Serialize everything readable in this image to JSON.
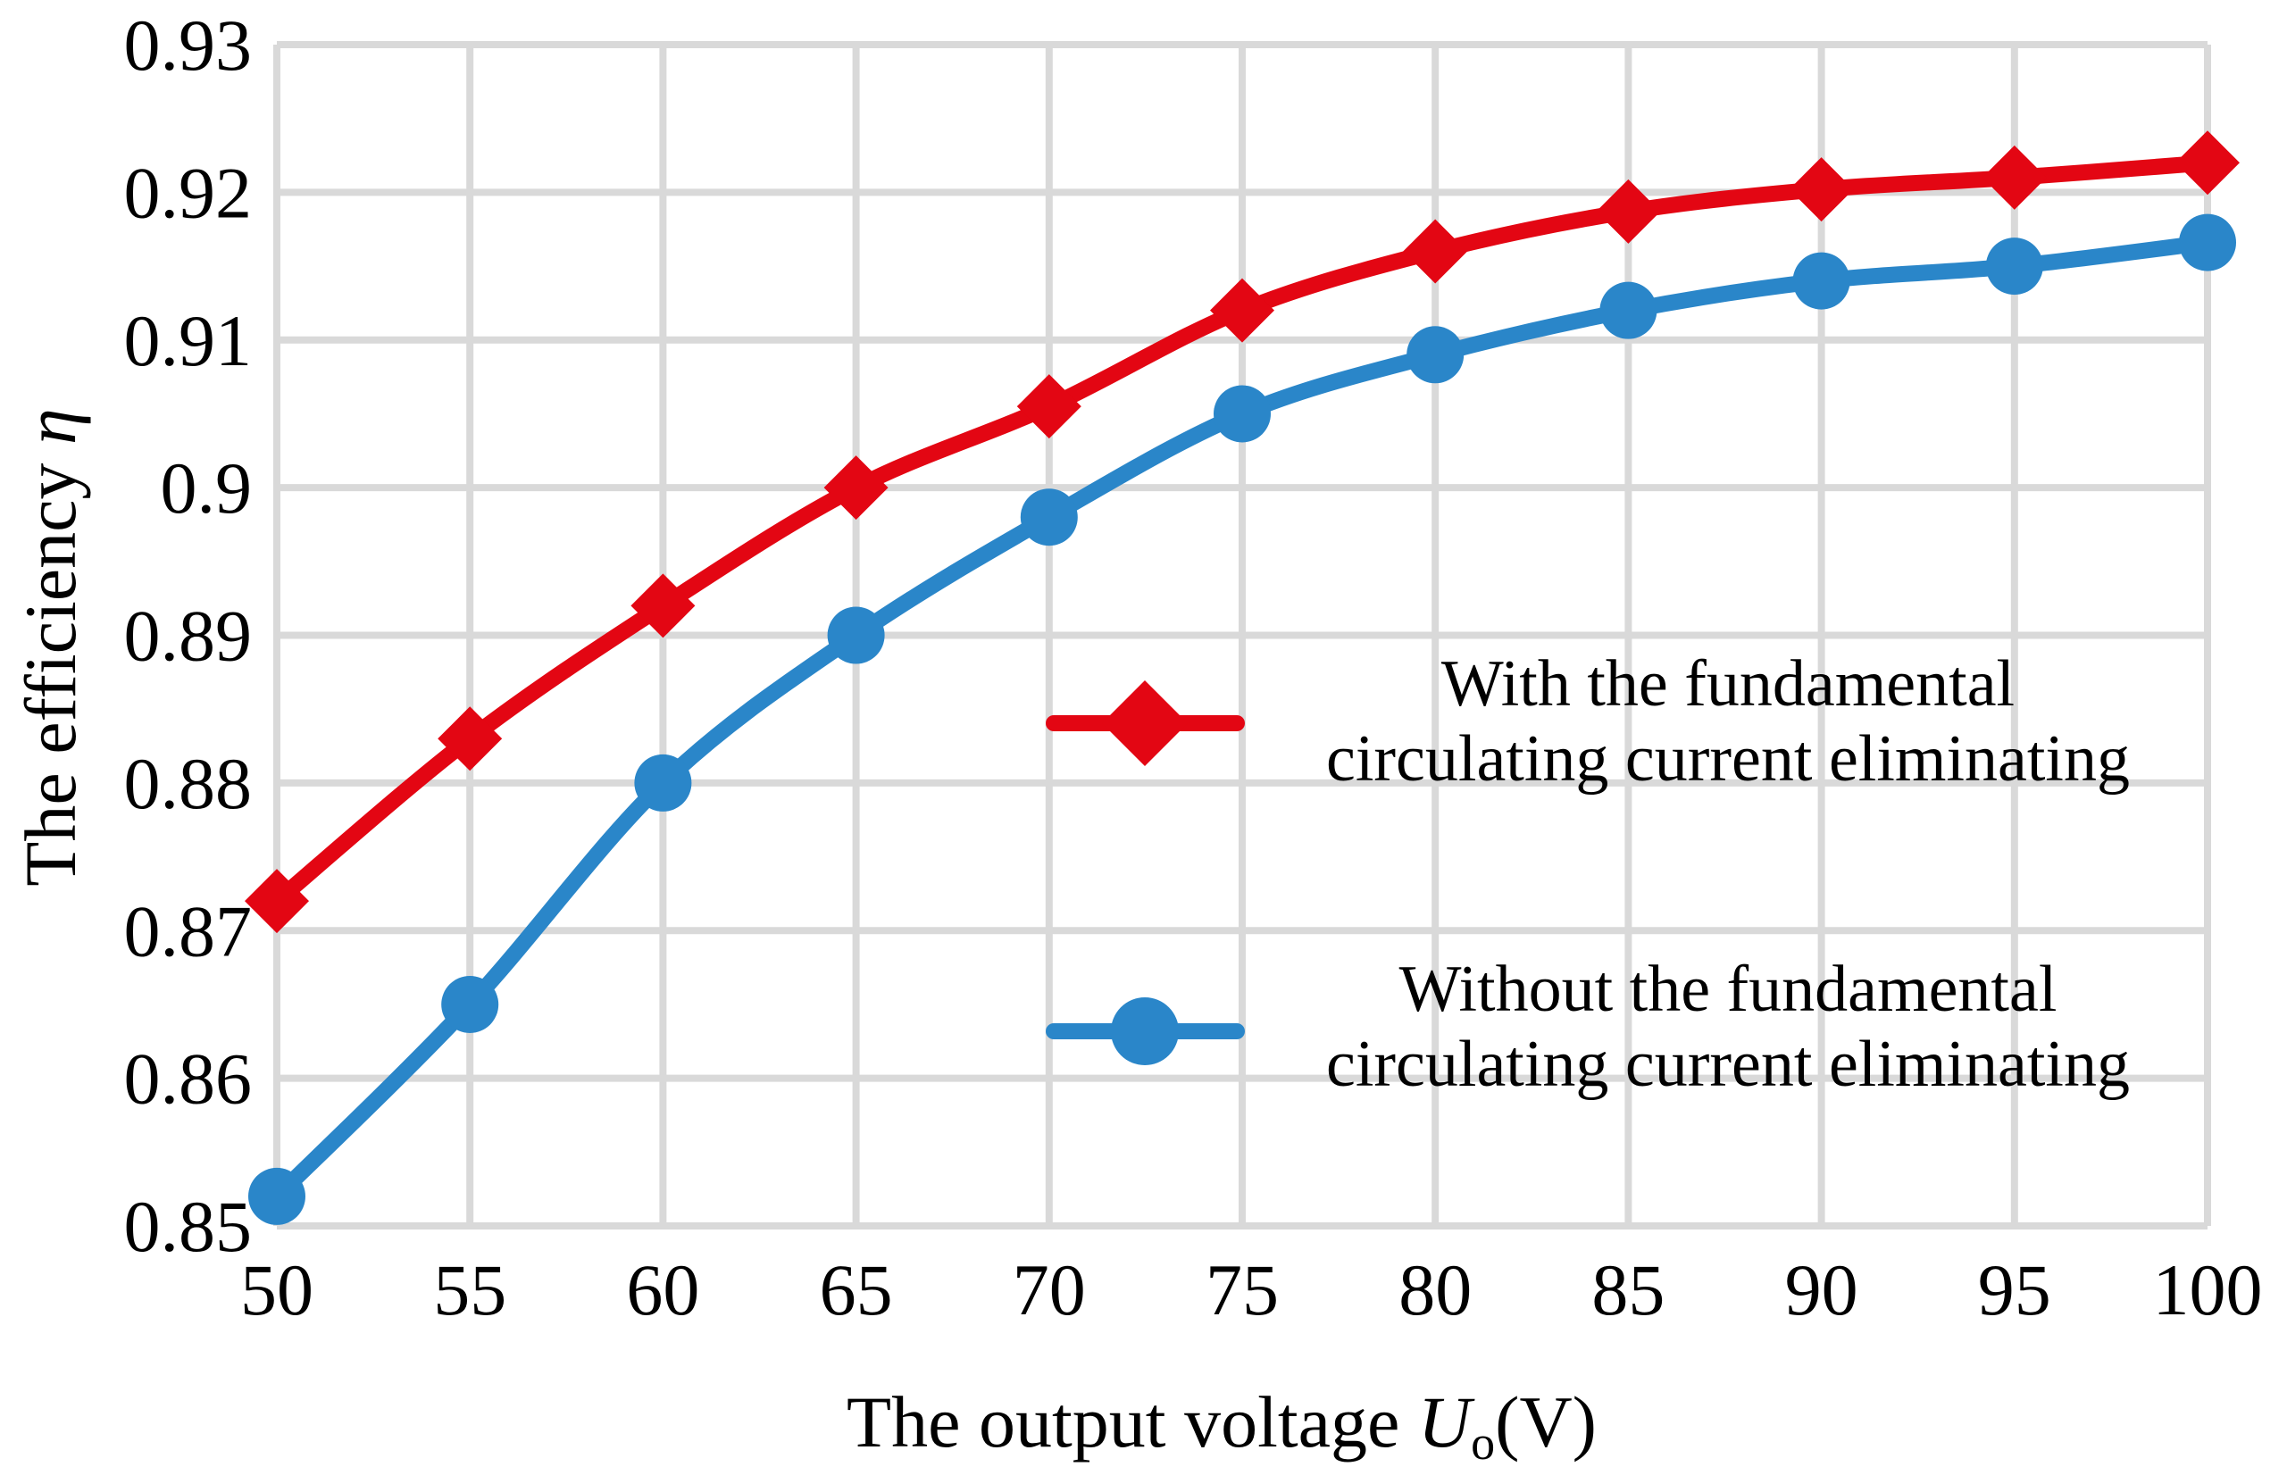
{
  "chart_data": {
    "type": "line",
    "xlabel": {
      "prefix": "The output voltage ",
      "var": "U",
      "sub": "o",
      "suffix": "(V)"
    },
    "ylabel": {
      "prefix": "The efficiency ",
      "var": "η"
    },
    "x": [
      50,
      55,
      60,
      65,
      70,
      75,
      80,
      85,
      90,
      95,
      100
    ],
    "xlim": [
      50,
      100
    ],
    "ylim": [
      0.85,
      0.93
    ],
    "x_ticks": [
      "50",
      "55",
      "60",
      "65",
      "70",
      "75",
      "80",
      "85",
      "90",
      "95",
      "100"
    ],
    "y_ticks": [
      "0.85",
      "0.86",
      "0.87",
      "0.88",
      "0.89",
      "0.9",
      "0.91",
      "0.92",
      "0.93"
    ],
    "y_tick_values": [
      0.85,
      0.86,
      0.87,
      0.88,
      0.89,
      0.9,
      0.91,
      0.92,
      0.93
    ],
    "grid": true,
    "legend_position": "right",
    "series": [
      {
        "name_lines": [
          "With the fundamental",
          "circulating current eliminating"
        ],
        "values": [
          0.872,
          0.883,
          0.892,
          0.9,
          0.9055,
          0.912,
          0.916,
          0.9187,
          0.9202,
          0.921,
          0.922
        ],
        "color": "#e30613",
        "marker": "diamond"
      },
      {
        "name_lines": [
          "Without the fundamental",
          "circulating current eliminating"
        ],
        "values": [
          0.852,
          0.865,
          0.88,
          0.89,
          0.898,
          0.905,
          0.909,
          0.912,
          0.914,
          0.915,
          0.9166
        ],
        "color": "#2a86c9",
        "marker": "circle"
      }
    ]
  }
}
